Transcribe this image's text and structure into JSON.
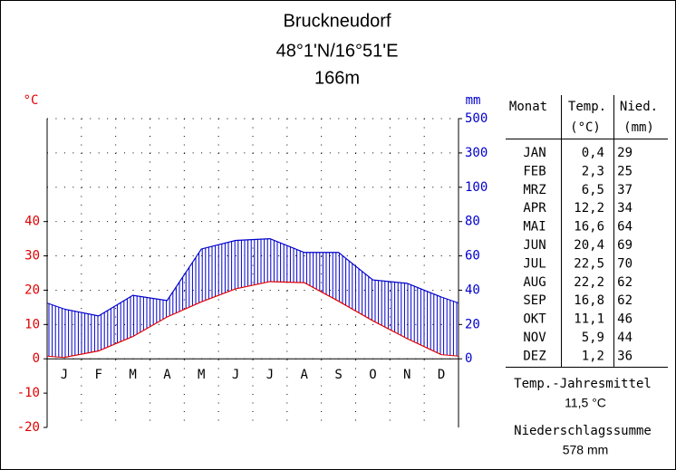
{
  "chart_data": {
    "type": "climate",
    "title": "Bruckneudorf",
    "coordinates": "48°1'N/16°51'E",
    "elevation": "166m",
    "y_unit": "°C",
    "y2_unit": "mm",
    "categories": [
      "J",
      "F",
      "M",
      "A",
      "M",
      "J",
      "J",
      "A",
      "S",
      "O",
      "N",
      "D"
    ],
    "series": [
      {
        "name": "Temp.",
        "color": "#e00000",
        "values": [
          0.4,
          2.3,
          6.5,
          12.2,
          16.6,
          20.4,
          22.5,
          22.2,
          16.8,
          11.1,
          5.9,
          1.2
        ],
        "value_labels": [
          "0,4",
          "2,3",
          "6,5",
          "12,2",
          "16,6",
          "20,4",
          "22,5",
          "22,2",
          "16,8",
          "11,1",
          "5,9",
          "1,2"
        ]
      },
      {
        "name": "Nied.",
        "color": "#0000cc",
        "axis": "y2",
        "values": [
          29,
          25,
          37,
          34,
          64,
          69,
          70,
          62,
          62,
          46,
          44,
          36
        ]
      }
    ],
    "ylim": [
      -20,
      70
    ],
    "yticks": [
      -20,
      -10,
      0,
      10,
      20,
      30,
      40
    ],
    "y2lim": [
      0,
      500
    ],
    "y2ticks": [
      0,
      20,
      40,
      60,
      80,
      100,
      300,
      500
    ],
    "grid": true,
    "table": {
      "month_header": "Monat",
      "temp_unit": "(°C)",
      "precip_unit": "(mm)",
      "months": [
        "JAN",
        "FEB",
        "MRZ",
        "APR",
        "MAI",
        "JUN",
        "JUL",
        "AUG",
        "SEP",
        "OKT",
        "NOV",
        "DEZ"
      ]
    },
    "annual": {
      "temp_label": "Temp.-Jahresmittel",
      "temp": {
        "value": 11.5,
        "label": "11,5 °C"
      },
      "precip_label": "Niederschlagssumme",
      "precip": {
        "value": 578,
        "label": "578 mm"
      }
    }
  }
}
